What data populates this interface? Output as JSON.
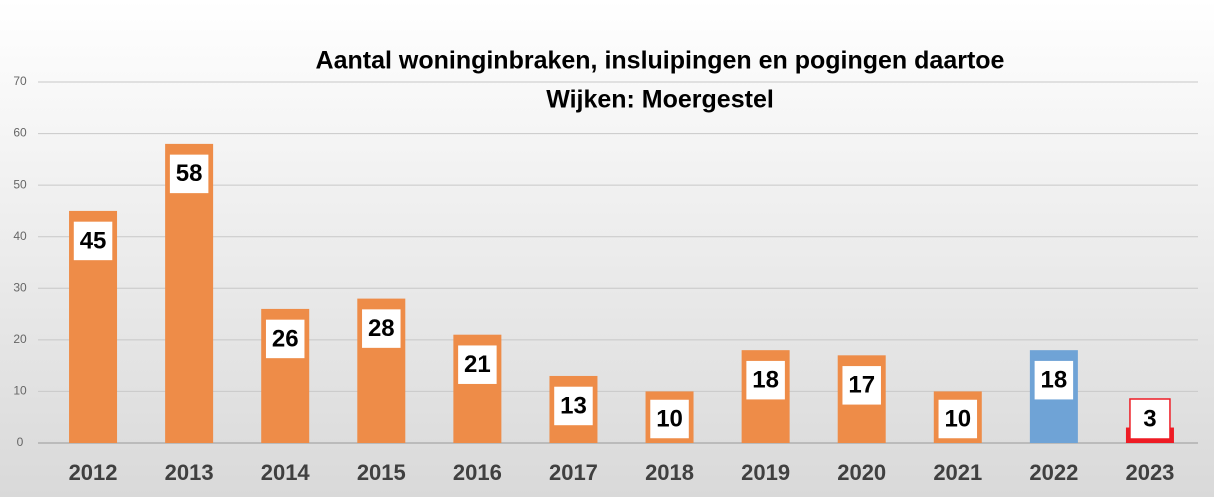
{
  "chart_data": {
    "type": "bar",
    "title": "Aantal woninginbraken, insluipingen en pogingen daartoe",
    "subtitle": "Wijken: Moergestel",
    "categories": [
      "2012",
      "2013",
      "2014",
      "2015",
      "2016",
      "2017",
      "2018",
      "2019",
      "2020",
      "2021",
      "2022",
      "2023"
    ],
    "values": [
      45,
      58,
      26,
      28,
      21,
      13,
      10,
      18,
      17,
      10,
      18,
      3
    ],
    "colors": [
      "#ee8c48",
      "#ee8c48",
      "#ee8c48",
      "#ee8c48",
      "#ee8c48",
      "#ee8c48",
      "#ee8c48",
      "#ee8c48",
      "#ee8c48",
      "#ee8c48",
      "#6fa3d6",
      "#ee1c25"
    ],
    "ylim": [
      0,
      70
    ],
    "yticks": [
      0,
      10,
      20,
      30,
      40,
      50,
      60,
      70
    ],
    "grid": true
  }
}
